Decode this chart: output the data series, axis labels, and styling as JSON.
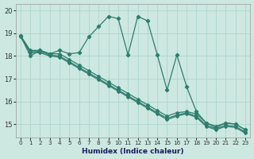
{
  "xlabel": "Humidex (Indice chaleur)",
  "xlim": [
    -0.5,
    23.5
  ],
  "ylim": [
    14.4,
    20.3
  ],
  "x_ticks": [
    0,
    1,
    2,
    3,
    4,
    5,
    6,
    7,
    8,
    9,
    10,
    11,
    12,
    13,
    14,
    15,
    16,
    17,
    18,
    19,
    20,
    21,
    22,
    23
  ],
  "y_ticks": [
    15,
    16,
    17,
    18,
    19,
    20
  ],
  "bg_color": "#cce8e0",
  "grid_color": "#aed4cc",
  "line_color": "#2e7d6e",
  "zigzag_y": [
    18.9,
    18.0,
    18.25,
    18.1,
    18.25,
    18.1,
    18.15,
    18.85,
    19.3,
    19.75,
    19.65,
    18.05,
    19.75,
    19.55,
    18.05,
    16.5,
    18.05,
    16.65,
    15.55,
    15.05,
    14.85,
    15.05,
    15.0,
    14.75
  ],
  "trend_top_y": [
    18.9,
    18.25,
    18.25,
    18.1,
    18.1,
    17.85,
    17.6,
    17.35,
    17.1,
    16.85,
    16.6,
    16.35,
    16.1,
    15.85,
    15.6,
    15.35,
    15.5,
    15.55,
    15.45,
    15.05,
    14.9,
    15.05,
    15.0,
    14.75
  ],
  "trend_mid_y": [
    18.9,
    18.2,
    18.2,
    18.05,
    18.0,
    17.75,
    17.5,
    17.25,
    17.0,
    16.75,
    16.5,
    16.25,
    16.0,
    15.75,
    15.5,
    15.25,
    15.4,
    15.5,
    15.35,
    14.95,
    14.8,
    14.95,
    14.9,
    14.65
  ],
  "trend_bot_y": [
    18.85,
    18.15,
    18.15,
    18.0,
    17.95,
    17.7,
    17.45,
    17.2,
    16.95,
    16.7,
    16.45,
    16.2,
    15.95,
    15.7,
    15.45,
    15.2,
    15.35,
    15.45,
    15.3,
    14.9,
    14.75,
    14.9,
    14.85,
    14.6
  ]
}
